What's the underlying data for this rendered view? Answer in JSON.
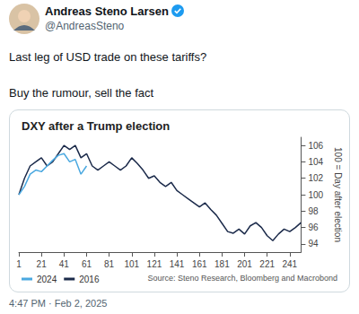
{
  "header": {
    "name": "Andreas Steno Larsen",
    "handle": "@AndreasSteno"
  },
  "text": [
    "Last leg of USD trade on these tariffs?",
    "Buy the rumour, sell the fact"
  ],
  "timestamp": "4:47 PM · Feb 2, 2025",
  "chart_data": {
    "type": "line",
    "title": "DXY after a Trump election",
    "ylabel": "100 = Day after election",
    "source": "Source: Steno Research, Bloomberg and Macrobond",
    "x": [
      1,
      6,
      11,
      16,
      21,
      26,
      31,
      36,
      41,
      46,
      51,
      56,
      61,
      66,
      71,
      76,
      81,
      86,
      91,
      96,
      101,
      106,
      111,
      116,
      121,
      126,
      131,
      136,
      141,
      146,
      151,
      156,
      161,
      166,
      171,
      176,
      181,
      186,
      191,
      196,
      201,
      206,
      211,
      216,
      221,
      226,
      231,
      236,
      241,
      246,
      251
    ],
    "series": [
      {
        "name": "2024",
        "color": "#4aa8e0",
        "values": [
          100,
          101,
          102.5,
          103,
          102.8,
          103.5,
          104.2,
          104.8,
          105,
          104,
          104.3,
          102.5,
          103.5,
          null,
          null,
          null,
          null,
          null,
          null,
          null,
          null,
          null,
          null,
          null,
          null,
          null,
          null,
          null,
          null,
          null,
          null,
          null,
          null,
          null,
          null,
          null,
          null,
          null,
          null,
          null,
          null,
          null,
          null,
          null,
          null,
          null,
          null,
          null,
          null,
          null,
          null
        ]
      },
      {
        "name": "2016",
        "color": "#1b2a4a",
        "values": [
          100,
          102,
          103.5,
          104,
          104.5,
          103.5,
          104,
          105,
          106,
          105.5,
          106,
          104.5,
          105,
          103.5,
          103,
          103.5,
          104,
          103.5,
          103,
          103.5,
          104.5,
          103.8,
          103,
          102,
          102.3,
          101.5,
          101,
          101.5,
          100.5,
          100,
          99.5,
          99,
          98.5,
          99,
          98.2,
          97.5,
          96.5,
          95.5,
          95.3,
          95.8,
          95.2,
          96.2,
          96.6,
          96,
          95,
          94.4,
          95.2,
          95.8,
          95.5,
          96,
          96.6
        ]
      }
    ],
    "xlim": [
      1,
      251
    ],
    "xticks": [
      1,
      21,
      41,
      61,
      81,
      101,
      121,
      141,
      161,
      181,
      201,
      221,
      241
    ],
    "ylim": [
      93,
      107
    ],
    "yticks": [
      94,
      96,
      98,
      100,
      102,
      104,
      106
    ],
    "grid": false,
    "legend": "lower left"
  }
}
